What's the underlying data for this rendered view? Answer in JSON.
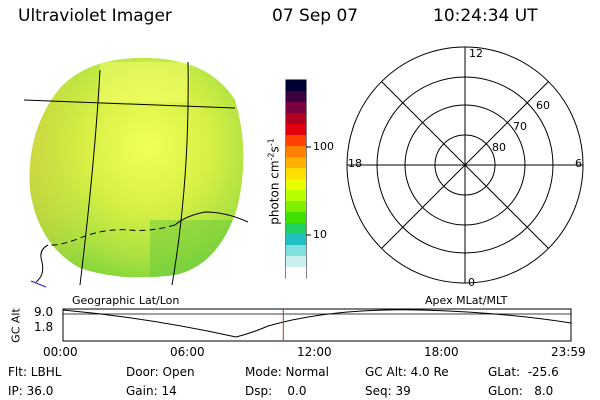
{
  "header": {
    "title": "Ultraviolet Imager",
    "date": "07 Sep 07",
    "time": "10:24:34 UT"
  },
  "left_panel": {
    "caption": "Geographic Lat/Lon"
  },
  "colorbar": {
    "label": "photon cm",
    "label_sup1": "-2",
    "label_mid": "s",
    "label_sup2": "-1",
    "ticks": [
      "100",
      "10"
    ],
    "colors": [
      "#000033",
      "#3a0040",
      "#7a0040",
      "#b00020",
      "#e00010",
      "#ff4000",
      "#ff8000",
      "#ffb000",
      "#ffe000",
      "#e8ff00",
      "#b8ff00",
      "#80f000",
      "#40e000",
      "#20d060",
      "#20c0c0",
      "#80e0e0",
      "#c8f0f0",
      "#ffffff"
    ]
  },
  "polar_plot": {
    "caption": "Apex MLat/MLT",
    "mlt_labels": {
      "top": "12",
      "left": "18",
      "right": "6",
      "bottom": "0"
    },
    "lat_labels": [
      "60",
      "70",
      "80"
    ]
  },
  "timeline": {
    "ylabel": "GC Alt",
    "yticks": [
      "9.0",
      "1.8"
    ],
    "xticks": [
      "00:00",
      "06:00",
      "12:00",
      "18:00",
      "23:59"
    ],
    "current_time_hours": 10.41
  },
  "status": {
    "flt": "Flt: LBHL",
    "ip": "IP: 36.0",
    "door": "Door: Open",
    "gain": "Gain: 14",
    "mode": "Mode: Normal",
    "dsp": "Dsp:    0.0",
    "gc_alt": "GC Alt: 4.0 Re",
    "seq": "Seq: 39",
    "glat": "GLat:  -25.6",
    "glon": "GLon:   8.0"
  }
}
